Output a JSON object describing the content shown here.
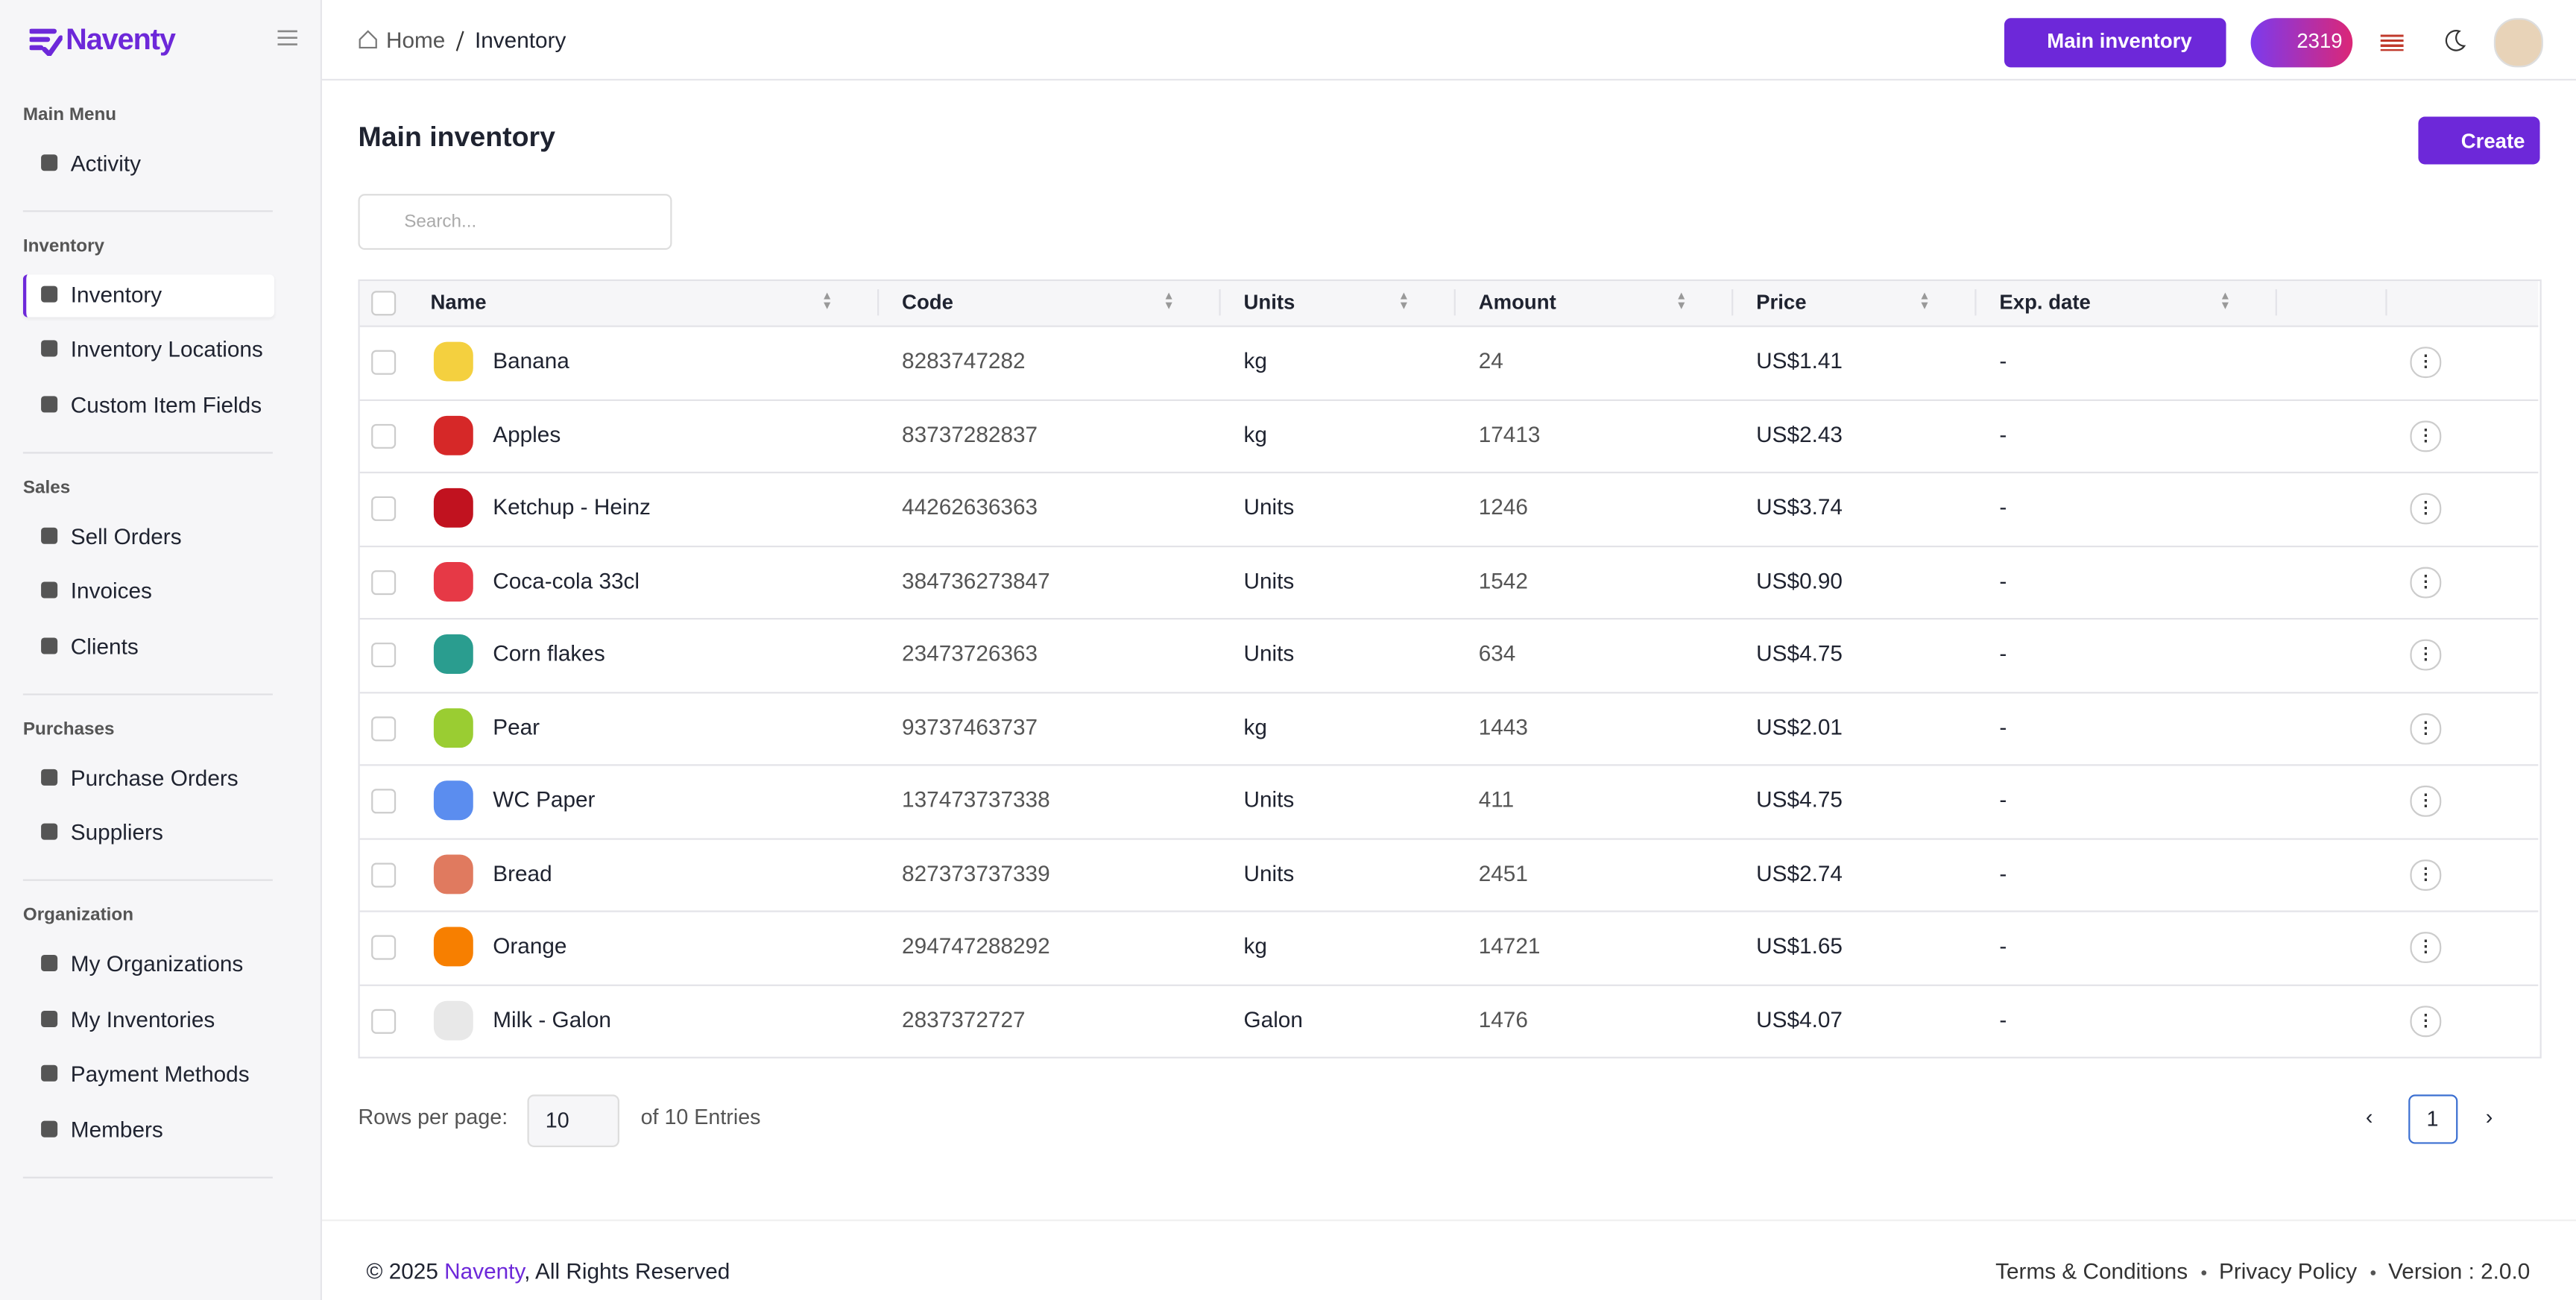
{
  "brand": "Naventy",
  "sidebar": {
    "sections": [
      {
        "title": "Main Menu",
        "items": [
          "Activity"
        ]
      },
      {
        "title": "Inventory",
        "items": [
          "Inventory",
          "Inventory Locations",
          "Custom Item Fields"
        ]
      },
      {
        "title": "Sales",
        "items": [
          "Sell Orders",
          "Invoices",
          "Clients"
        ]
      },
      {
        "title": "Purchases",
        "items": [
          "Purchase Orders",
          "Suppliers"
        ]
      },
      {
        "title": "Organization",
        "items": [
          "My Organizations",
          "My Inventories",
          "Payment Methods",
          "Members"
        ]
      }
    ]
  },
  "header": {
    "breadcrumb": [
      "Home",
      "Inventory"
    ],
    "inventory_button": "Main inventory",
    "points": "2319"
  },
  "page": {
    "title": "Main inventory",
    "create_button": "Create",
    "search_placeholder": "Search..."
  },
  "table": {
    "columns": [
      "Name",
      "Code",
      "Units",
      "Amount",
      "Price",
      "Exp. date"
    ],
    "rows": [
      [
        "Banana",
        "8283747282",
        "kg",
        "24",
        "US$1.41",
        "-"
      ],
      [
        "Apples",
        "83737282837",
        "kg",
        "17413",
        "US$2.43",
        "-"
      ],
      [
        "Ketchup - Heinz",
        "44262636363",
        "Units",
        "1246",
        "US$3.74",
        "-"
      ],
      [
        "Coca-cola 33cl",
        "384736273847",
        "Units",
        "1542",
        "US$0.90",
        "-"
      ],
      [
        "Corn flakes",
        "23473726363",
        "Units",
        "634",
        "US$4.75",
        "-"
      ],
      [
        "Pear",
        "93737463737",
        "kg",
        "1443",
        "US$2.01",
        "-"
      ],
      [
        "WC Paper",
        "137473737338",
        "Units",
        "411",
        "US$4.75",
        "-"
      ],
      [
        "Bread",
        "827373737339",
        "Units",
        "2451",
        "US$2.74",
        "-"
      ],
      [
        "Orange",
        "294747288292",
        "kg",
        "14721",
        "US$1.65",
        "-"
      ],
      [
        "Milk - Galon",
        "2837372727",
        "Galon",
        "1476",
        "US$4.07",
        "-"
      ]
    ]
  },
  "pagination": {
    "rows_per_page_label": "Rows per page:",
    "rows_per_page": "10",
    "entries": "of 10 Entries",
    "page": "1"
  },
  "footer": {
    "copyright": "© 2025 ",
    "brand": "Naventy",
    "rights": ", All Rights Reserved",
    "links": [
      "Terms & Conditions",
      "Privacy Policy",
      "Version : 2.0.0"
    ]
  }
}
